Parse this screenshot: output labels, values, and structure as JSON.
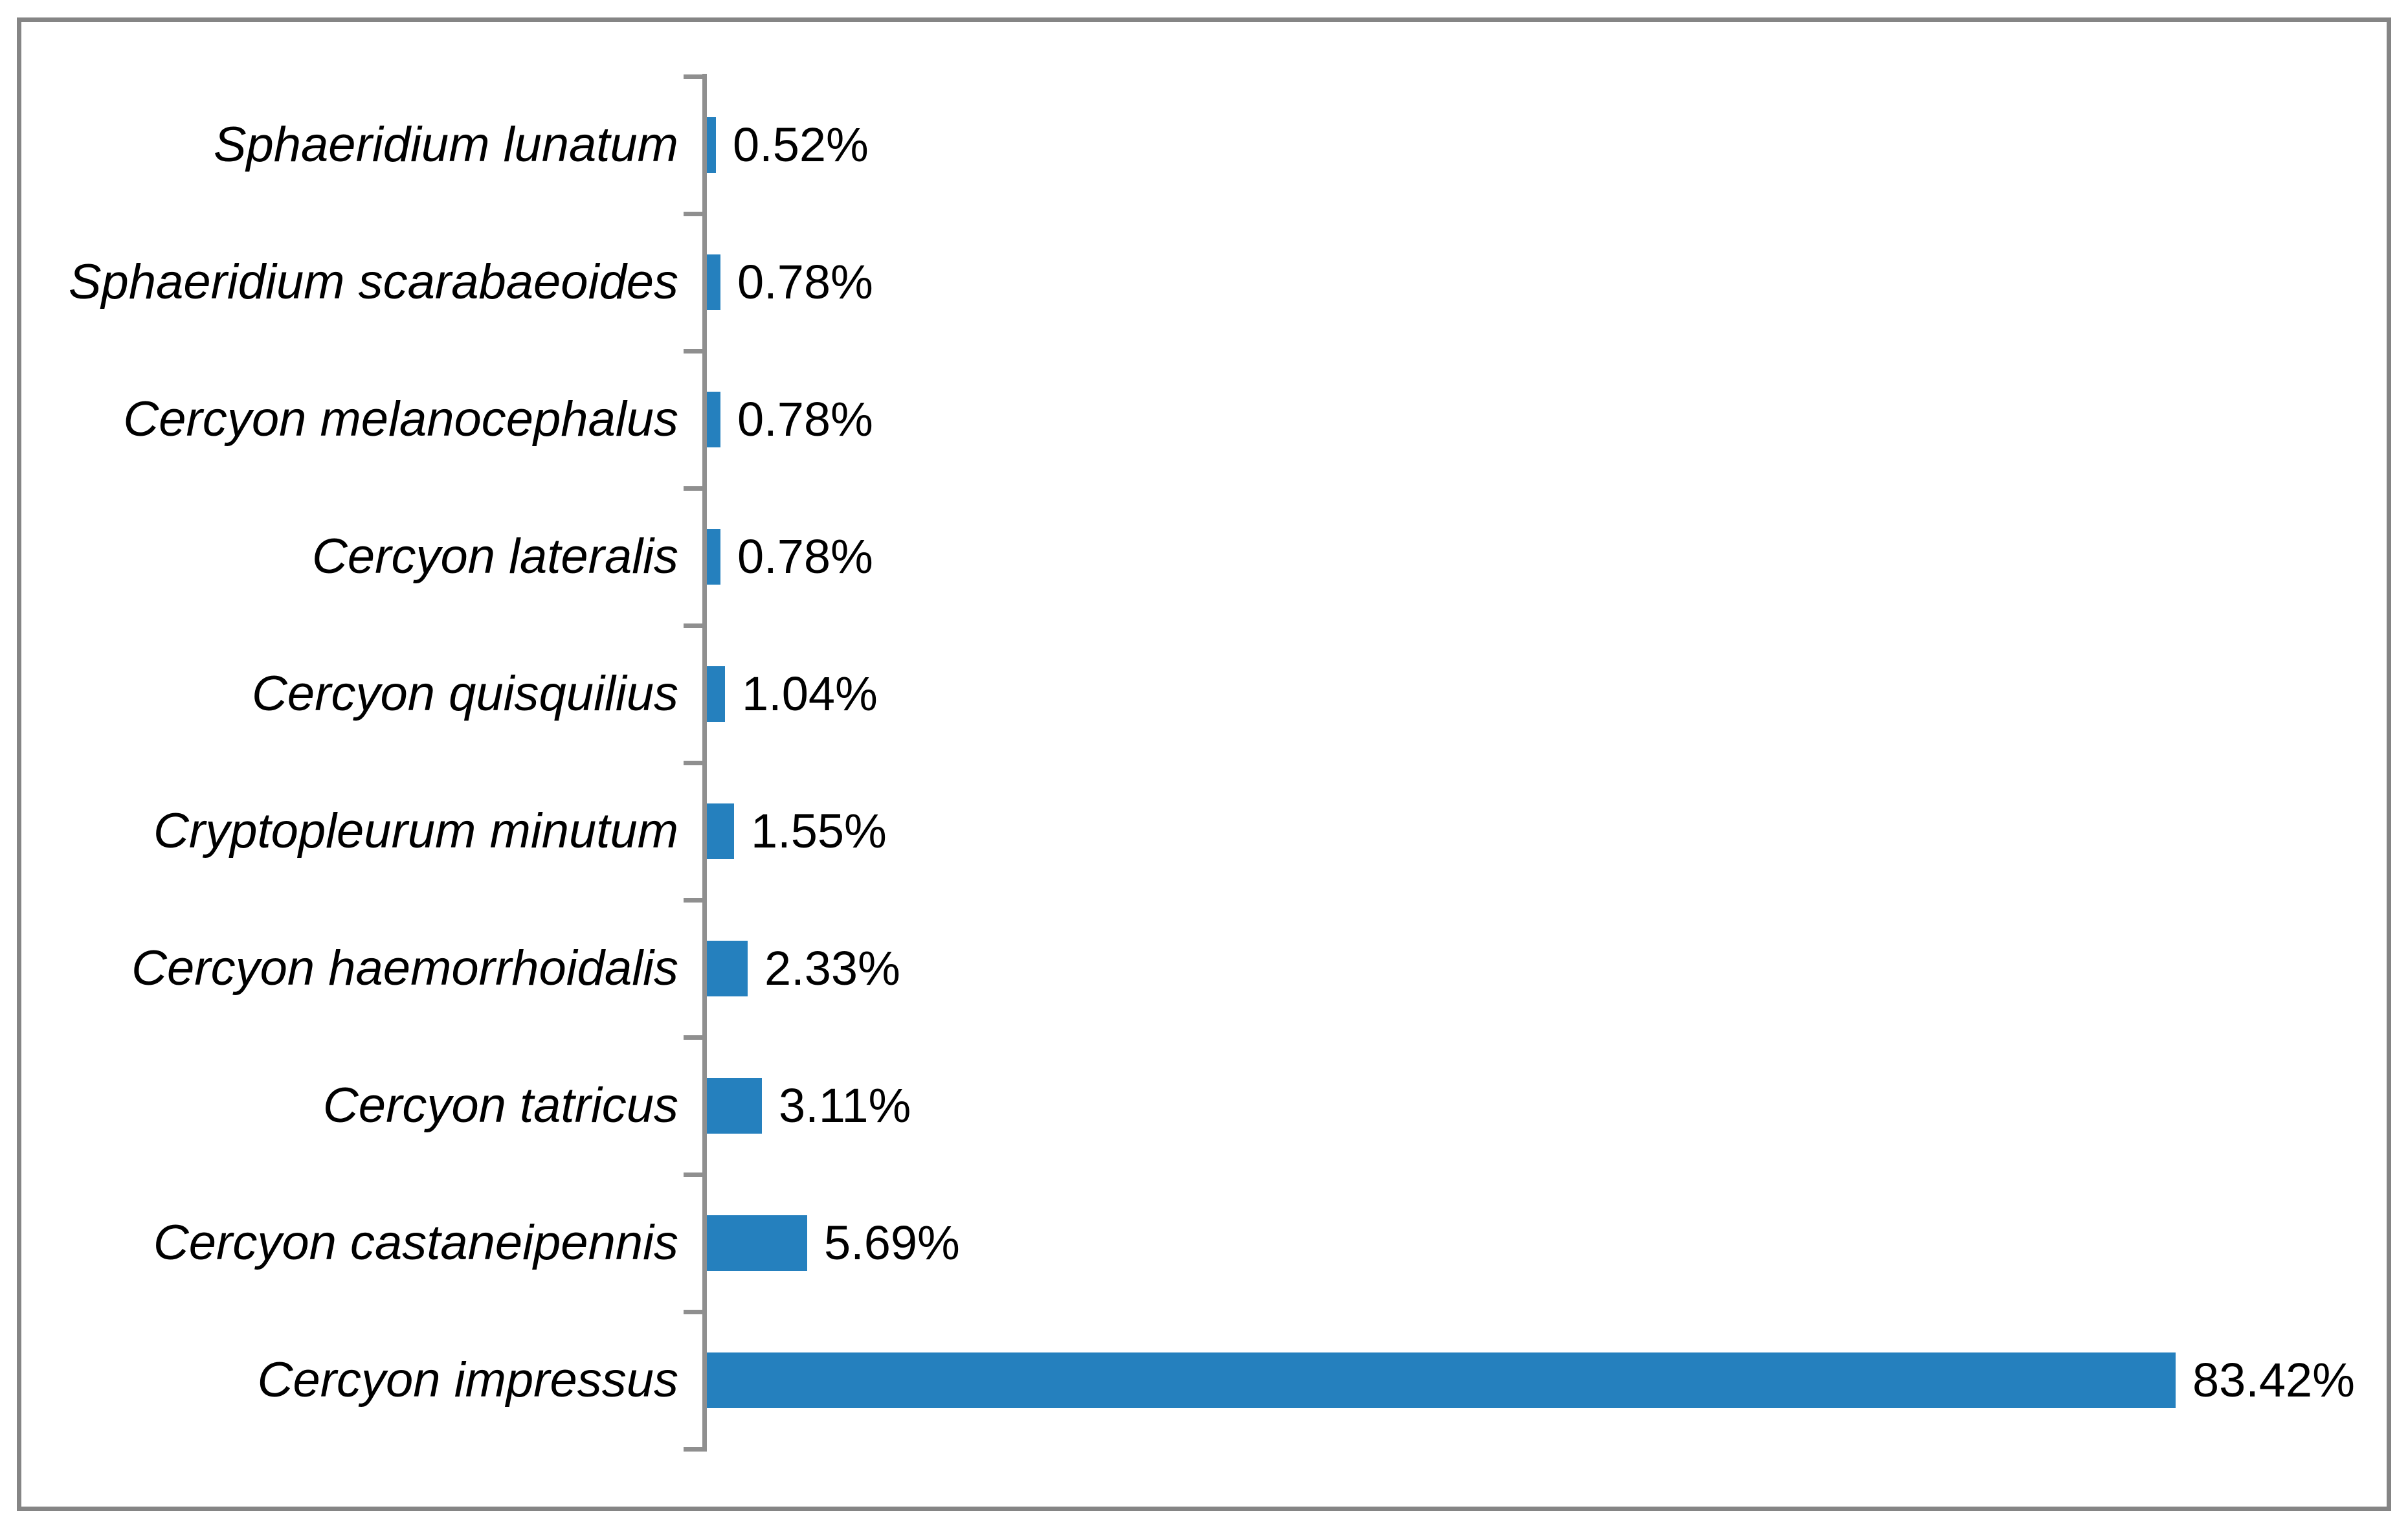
{
  "chart_data": {
    "type": "bar",
    "orientation": "horizontal",
    "title": "",
    "xlabel": "",
    "ylabel": "",
    "grid": false,
    "legend": null,
    "xlim": [
      0,
      90
    ],
    "categories": [
      "Sphaeridium lunatum",
      "Sphaeridium scarabaeoides",
      "Cercyon melanocephalus",
      "Cercyon lateralis",
      "Cercyon quisquilius",
      "Cryptopleurum minutum",
      "Cercyon haemorrhoidalis",
      "Cercyon tatricus",
      "Cercyon castaneipennis",
      "Cercyon impressus"
    ],
    "values": [
      0.52,
      0.78,
      0.78,
      0.78,
      1.04,
      1.55,
      2.33,
      3.11,
      5.69,
      83.42
    ],
    "value_labels": [
      "0.52%",
      "0.78%",
      "0.78%",
      "0.78%",
      "1.04%",
      "1.55%",
      "2.33%",
      "3.11%",
      "5.69%",
      "83.42%"
    ],
    "category_text_style": "italic",
    "colors": {
      "bar": "#2580BE",
      "axis": "#8F8F8F",
      "frame": "#858585",
      "text": "#000000",
      "background": "#FFFFFF"
    }
  }
}
